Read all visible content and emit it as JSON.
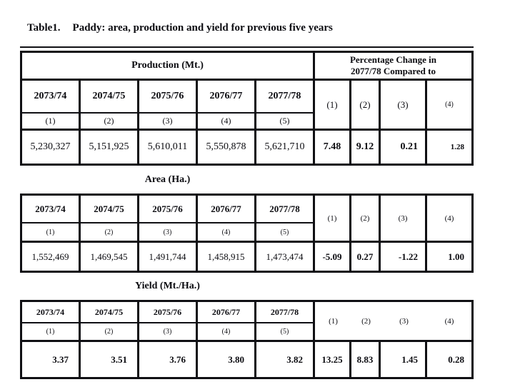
{
  "caption": {
    "number": "Table1.",
    "text": "Paddy: area, production and yield for previous five years"
  },
  "colors": {
    "ink": "#0b0b10",
    "paper": "#ffffff",
    "border": "#101014"
  },
  "tables": [
    {
      "name": "production",
      "left_header": "Production (Mt.)",
      "right_header_line1": "Percentage Change in",
      "right_header_line2": "2077/78 Compared to",
      "years": [
        "2073/74",
        "2074/75",
        "2075/76",
        "2076/77",
        "2077/78"
      ],
      "year_nums": [
        "(1)",
        "(2)",
        "(3)",
        "(4)",
        "(5)"
      ],
      "pct_nums": [
        "(1)",
        "(2)",
        "(3)",
        "(4)"
      ],
      "values": [
        "5,230,327",
        "5,151,925",
        "5,610,011",
        "5,550,878",
        "5,621,710"
      ],
      "pct_values": [
        "7.48",
        "9.12",
        "0.21",
        "1.28"
      ]
    },
    {
      "name": "area",
      "section_title": "Area (Ha.)",
      "years": [
        "2073/74",
        "2074/75",
        "2075/76",
        "2076/77",
        "2077/78"
      ],
      "year_nums": [
        "(1)",
        "(2)",
        "(3)",
        "(4)",
        "(5)"
      ],
      "pct_nums": [
        "(1)",
        "(2)",
        "(3)",
        "(4)"
      ],
      "values": [
        "1,552,469",
        "1,469,545",
        "1,491,744",
        "1,458,915",
        "1,473,474"
      ],
      "pct_values": [
        "-5.09",
        "0.27",
        "-1.22",
        "1.00"
      ]
    },
    {
      "name": "yield",
      "section_title": "Yield (Mt./Ha.)",
      "years": [
        "2073/74",
        "2074/75",
        "2075/76",
        "2076/77",
        "2077/78"
      ],
      "year_nums": [
        "(1)",
        "(2)",
        "(3)",
        "(4)",
        "(5)"
      ],
      "pct_nums": [
        "(1)",
        "(2)",
        "(3)",
        "(4)"
      ],
      "values": [
        "3.37",
        "3.51",
        "3.76",
        "3.80",
        "3.82"
      ],
      "pct_values": [
        "13.25",
        "8.83",
        "1.45",
        "0.28"
      ]
    }
  ]
}
